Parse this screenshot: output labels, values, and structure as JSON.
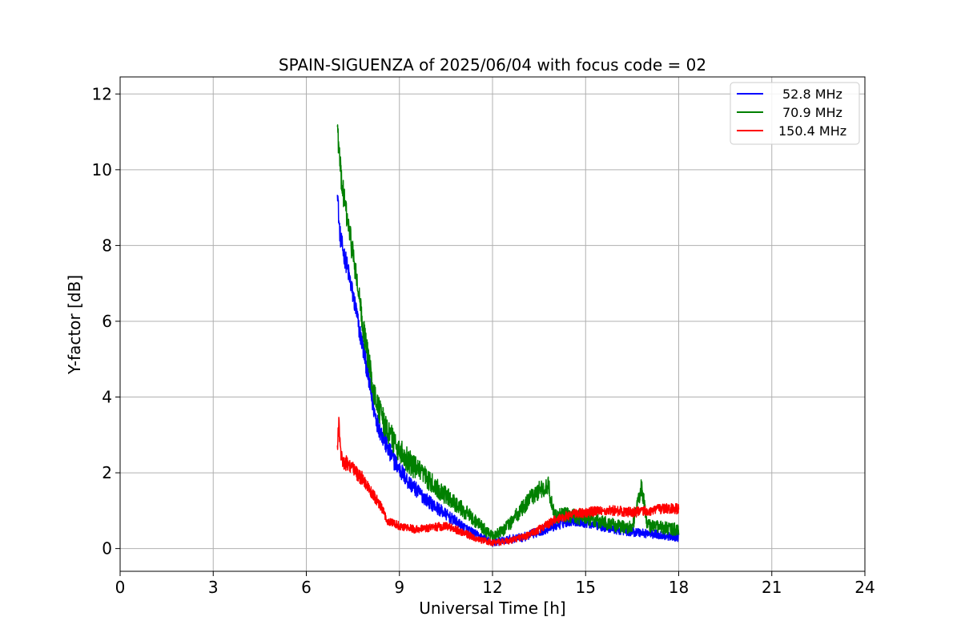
{
  "chart_data": {
    "type": "line",
    "title": "SPAIN-SIGUENZA of 2025/06/04 with focus code = 02",
    "xlabel": "Universal Time [h]",
    "ylabel": "Y-factor [dB]",
    "xlim": [
      0,
      24
    ],
    "ylim": [
      -0.6,
      12.45
    ],
    "xticks": [
      0,
      3,
      6,
      9,
      12,
      15,
      18,
      21,
      24
    ],
    "yticks": [
      0,
      2,
      4,
      6,
      8,
      10,
      12
    ],
    "grid": true,
    "legend_position": "top-right",
    "series": [
      {
        "name": "52.8 MHz",
        "color": "#0000ff",
        "noise": 0.55,
        "x": [
          7.0,
          7.05,
          7.1,
          7.2,
          7.3,
          7.4,
          7.5,
          7.6,
          7.7,
          7.8,
          7.9,
          8.0,
          8.1,
          8.2,
          8.3,
          8.5,
          8.7,
          9.0,
          9.3,
          9.6,
          10.0,
          10.5,
          11.0,
          11.5,
          12.0,
          12.3,
          12.6,
          13.0,
          13.5,
          14.0,
          14.5,
          15.0,
          15.5,
          16.0,
          16.5,
          17.0,
          17.5,
          18.0
        ],
        "y": [
          9.6,
          8.6,
          8.2,
          7.8,
          7.5,
          7.1,
          6.7,
          6.3,
          5.8,
          5.4,
          5.0,
          4.5,
          4.0,
          3.6,
          3.3,
          2.9,
          2.5,
          2.1,
          1.75,
          1.5,
          1.2,
          0.9,
          0.6,
          0.35,
          0.15,
          0.2,
          0.25,
          0.3,
          0.45,
          0.6,
          0.75,
          0.7,
          0.6,
          0.5,
          0.45,
          0.4,
          0.35,
          0.3
        ]
      },
      {
        "name": "70.9 MHz",
        "color": "#008000",
        "noise": 0.7,
        "x": [
          7.0,
          7.05,
          7.1,
          7.2,
          7.3,
          7.4,
          7.5,
          7.6,
          7.7,
          7.8,
          7.9,
          8.0,
          8.1,
          8.2,
          8.3,
          8.5,
          8.7,
          9.0,
          9.3,
          9.6,
          10.0,
          10.5,
          11.0,
          11.5,
          12.0,
          12.3,
          12.6,
          12.9,
          13.2,
          13.5,
          13.8,
          14.0,
          14.3,
          14.6,
          15.0,
          15.5,
          16.0,
          16.5,
          16.8,
          17.0,
          17.5,
          18.0
        ],
        "y": [
          11.2,
          10.5,
          10.0,
          9.3,
          8.8,
          8.3,
          7.8,
          7.2,
          6.6,
          6.0,
          5.5,
          5.0,
          4.5,
          4.1,
          3.8,
          3.3,
          3.0,
          2.6,
          2.3,
          2.05,
          1.75,
          1.4,
          1.05,
          0.7,
          0.3,
          0.45,
          0.7,
          1.0,
          1.3,
          1.55,
          1.65,
          0.85,
          0.9,
          0.85,
          0.8,
          0.7,
          0.6,
          0.55,
          1.6,
          0.6,
          0.55,
          0.5
        ]
      },
      {
        "name": "150.4 MHz",
        "color": "#ff0000",
        "noise": 0.45,
        "x": [
          7.0,
          7.05,
          7.1,
          7.2,
          7.4,
          7.6,
          7.8,
          8.0,
          8.2,
          8.4,
          8.6,
          9.0,
          9.5,
          10.0,
          10.5,
          11.0,
          11.5,
          12.0,
          12.5,
          13.0,
          13.5,
          14.0,
          14.5,
          15.0,
          15.5,
          16.0,
          16.5,
          17.0,
          17.5,
          18.0
        ],
        "y": [
          2.6,
          3.4,
          2.5,
          2.3,
          2.2,
          2.0,
          1.85,
          1.6,
          1.35,
          1.1,
          0.75,
          0.6,
          0.5,
          0.55,
          0.6,
          0.45,
          0.25,
          0.15,
          0.2,
          0.3,
          0.5,
          0.75,
          0.9,
          0.95,
          1.0,
          1.0,
          0.95,
          1.0,
          1.05,
          1.05
        ]
      }
    ]
  }
}
